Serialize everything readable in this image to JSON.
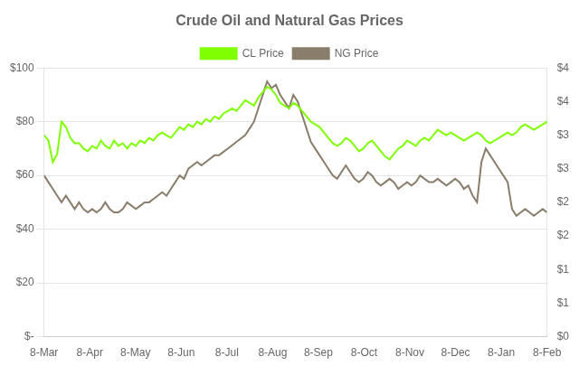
{
  "chart_data": {
    "type": "line",
    "title": "Crude Oil and Natural Gas Prices",
    "xlim": [
      0,
      11
    ],
    "xticks": [
      {
        "value": 0,
        "label": "8-Mar"
      },
      {
        "value": 1,
        "label": "8-Apr"
      },
      {
        "value": 2,
        "label": "8-May"
      },
      {
        "value": 3,
        "label": "8-Jun"
      },
      {
        "value": 4,
        "label": "8-Jul"
      },
      {
        "value": 5,
        "label": "8-Aug"
      },
      {
        "value": 6,
        "label": "8-Sep"
      },
      {
        "value": 7,
        "label": "8-Oct"
      },
      {
        "value": 8,
        "label": "8-Nov"
      },
      {
        "value": 9,
        "label": "8-Dec"
      },
      {
        "value": 10,
        "label": "8-Jan"
      },
      {
        "value": 11,
        "label": "8-Feb"
      }
    ],
    "ylim": [
      0,
      100
    ],
    "yticks": [
      {
        "value": 0,
        "label": "$-"
      },
      {
        "value": 20,
        "label": "$20"
      },
      {
        "value": 40,
        "label": "$40"
      },
      {
        "value": 60,
        "label": "$60"
      },
      {
        "value": 80,
        "label": "$80"
      },
      {
        "value": 100,
        "label": "$100"
      }
    ],
    "y2lim": [
      0,
      4
    ],
    "y2ticks": [
      {
        "value": 0,
        "label": "$0"
      },
      {
        "value": 0.5,
        "label": "$1"
      },
      {
        "value": 1.0,
        "label": "$1"
      },
      {
        "value": 1.5,
        "label": "$2"
      },
      {
        "value": 2.0,
        "label": "$2"
      },
      {
        "value": 2.5,
        "label": "$3"
      },
      {
        "value": 3.0,
        "label": "$3"
      },
      {
        "value": 3.5,
        "label": "$4"
      },
      {
        "value": 4.0,
        "label": "$4"
      }
    ],
    "grid": true,
    "legend": "top",
    "series": [
      {
        "name": "CL Price",
        "color": "#7FFF00",
        "values": [
          75,
          73,
          65,
          68,
          80,
          78,
          74,
          72,
          72,
          70,
          69,
          71,
          70,
          73,
          71,
          70,
          73,
          71,
          72,
          70,
          72,
          71,
          73,
          72,
          74,
          73,
          75,
          76,
          75,
          74,
          76,
          78,
          77,
          79,
          78,
          80,
          79,
          81,
          80,
          82,
          81,
          83,
          84,
          85,
          84,
          86,
          88,
          87,
          86,
          89,
          91,
          93,
          92,
          90,
          87,
          86,
          85,
          87,
          86,
          84,
          82,
          80,
          79,
          78,
          76,
          74,
          72,
          71,
          72,
          74,
          73,
          71,
          69,
          70,
          72,
          73,
          71,
          69,
          67,
          66,
          68,
          70,
          71,
          73,
          72,
          71,
          73,
          74,
          73,
          75,
          77,
          76,
          75,
          76,
          75,
          74,
          73,
          74,
          75,
          76,
          75,
          73,
          72,
          73,
          74,
          75,
          76,
          75,
          76,
          78,
          79,
          78,
          77,
          78,
          79,
          80
        ]
      },
      {
        "name": "NG Price",
        "color": "#8B7D6B",
        "axis": "y2",
        "values": [
          2.4,
          2.3,
          2.2,
          2.1,
          2.0,
          2.1,
          2.0,
          1.9,
          2.0,
          1.9,
          1.85,
          1.9,
          1.85,
          1.9,
          2.0,
          1.9,
          1.85,
          1.85,
          1.9,
          2.0,
          1.95,
          1.9,
          1.95,
          2.0,
          2.0,
          2.05,
          2.1,
          2.15,
          2.1,
          2.2,
          2.3,
          2.4,
          2.35,
          2.5,
          2.55,
          2.6,
          2.55,
          2.6,
          2.65,
          2.7,
          2.7,
          2.75,
          2.8,
          2.85,
          2.9,
          2.95,
          3.0,
          3.1,
          3.2,
          3.4,
          3.6,
          3.8,
          3.7,
          3.75,
          3.6,
          3.5,
          3.4,
          3.6,
          3.5,
          3.3,
          3.1,
          2.9,
          2.8,
          2.7,
          2.6,
          2.5,
          2.4,
          2.35,
          2.45,
          2.55,
          2.45,
          2.35,
          2.3,
          2.35,
          2.45,
          2.4,
          2.3,
          2.25,
          2.3,
          2.35,
          2.3,
          2.2,
          2.25,
          2.3,
          2.25,
          2.3,
          2.4,
          2.35,
          2.3,
          2.3,
          2.35,
          2.3,
          2.25,
          2.3,
          2.35,
          2.3,
          2.2,
          2.25,
          2.1,
          2.0,
          2.6,
          2.8,
          2.7,
          2.6,
          2.5,
          2.4,
          2.3,
          1.9,
          1.8,
          1.85,
          1.9,
          1.85,
          1.8,
          1.85,
          1.9,
          1.85
        ]
      }
    ]
  }
}
